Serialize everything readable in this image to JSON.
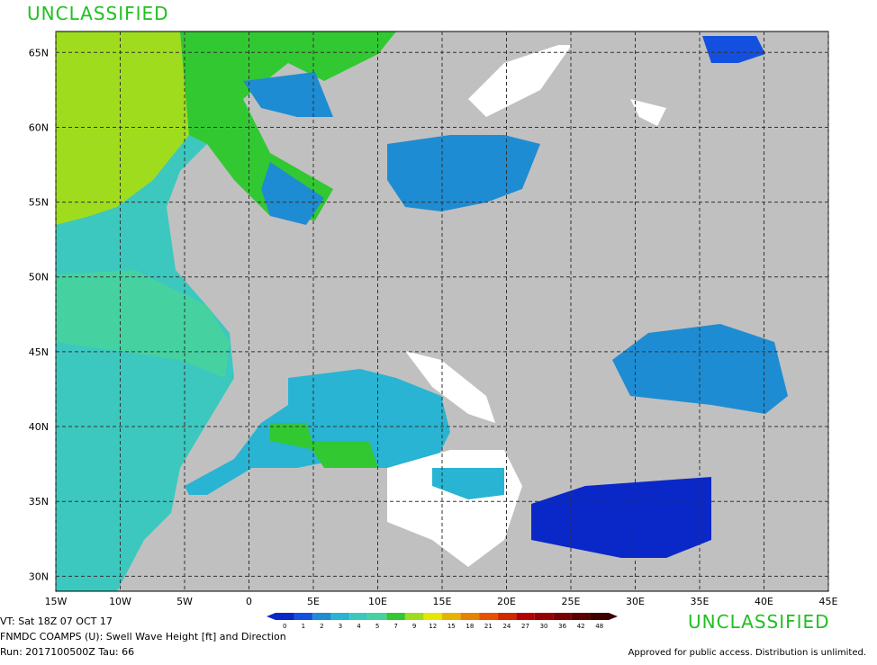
{
  "header": {
    "classification": "UNCLASSIFIED"
  },
  "map": {
    "xlim": [
      -15,
      45
    ],
    "ylim": [
      29,
      66.4
    ],
    "xticks": [
      {
        "value": -15,
        "label": "15W"
      },
      {
        "value": -10,
        "label": "10W"
      },
      {
        "value": -5,
        "label": "5W"
      },
      0,
      {
        "value": 5,
        "label": "5E"
      },
      {
        "value": 10,
        "label": "10E"
      },
      {
        "value": 15,
        "label": "15E"
      },
      {
        "value": 20,
        "label": "20E"
      },
      {
        "value": 25,
        "label": "25E"
      },
      {
        "value": 30,
        "label": "30E"
      },
      {
        "value": 35,
        "label": "35E"
      },
      {
        "value": 40,
        "label": "40E"
      },
      {
        "value": 45,
        "label": "45E"
      }
    ],
    "yticks": [
      {
        "value": 30,
        "label": "30N"
      },
      {
        "value": 35,
        "label": "35N"
      },
      {
        "value": 40,
        "label": "40N"
      },
      {
        "value": 45,
        "label": "45N"
      },
      {
        "value": 50,
        "label": "50N"
      },
      {
        "value": 55,
        "label": "55N"
      },
      {
        "value": 60,
        "label": "60N"
      },
      {
        "value": 65,
        "label": "65N"
      }
    ]
  },
  "colorbar": {
    "levels": [
      0,
      1,
      2,
      3,
      4,
      5,
      7,
      9,
      12,
      15,
      18,
      21,
      24,
      27,
      30,
      36,
      42,
      48
    ],
    "colors": [
      "#0a28c8",
      "#1450e0",
      "#1e8cd2",
      "#28b4d2",
      "#3cc8be",
      "#46d2a0",
      "#32c832",
      "#a0dc1e",
      "#e6e600",
      "#e6b400",
      "#e68200",
      "#e65000",
      "#d22800",
      "#b40000",
      "#960000",
      "#780000",
      "#5a0000",
      "#3c0000"
    ]
  },
  "footer": {
    "valid_time": "VT: Sat 18Z 07 OCT 17",
    "product": "FNMDC COAMPS (U): Swell Wave Height [ft] and Direction",
    "run": "Run: 2017100500Z Tau: 66",
    "classification": "UNCLASSIFIED",
    "notice": "Approved for public access. Distribution is unlimited."
  }
}
